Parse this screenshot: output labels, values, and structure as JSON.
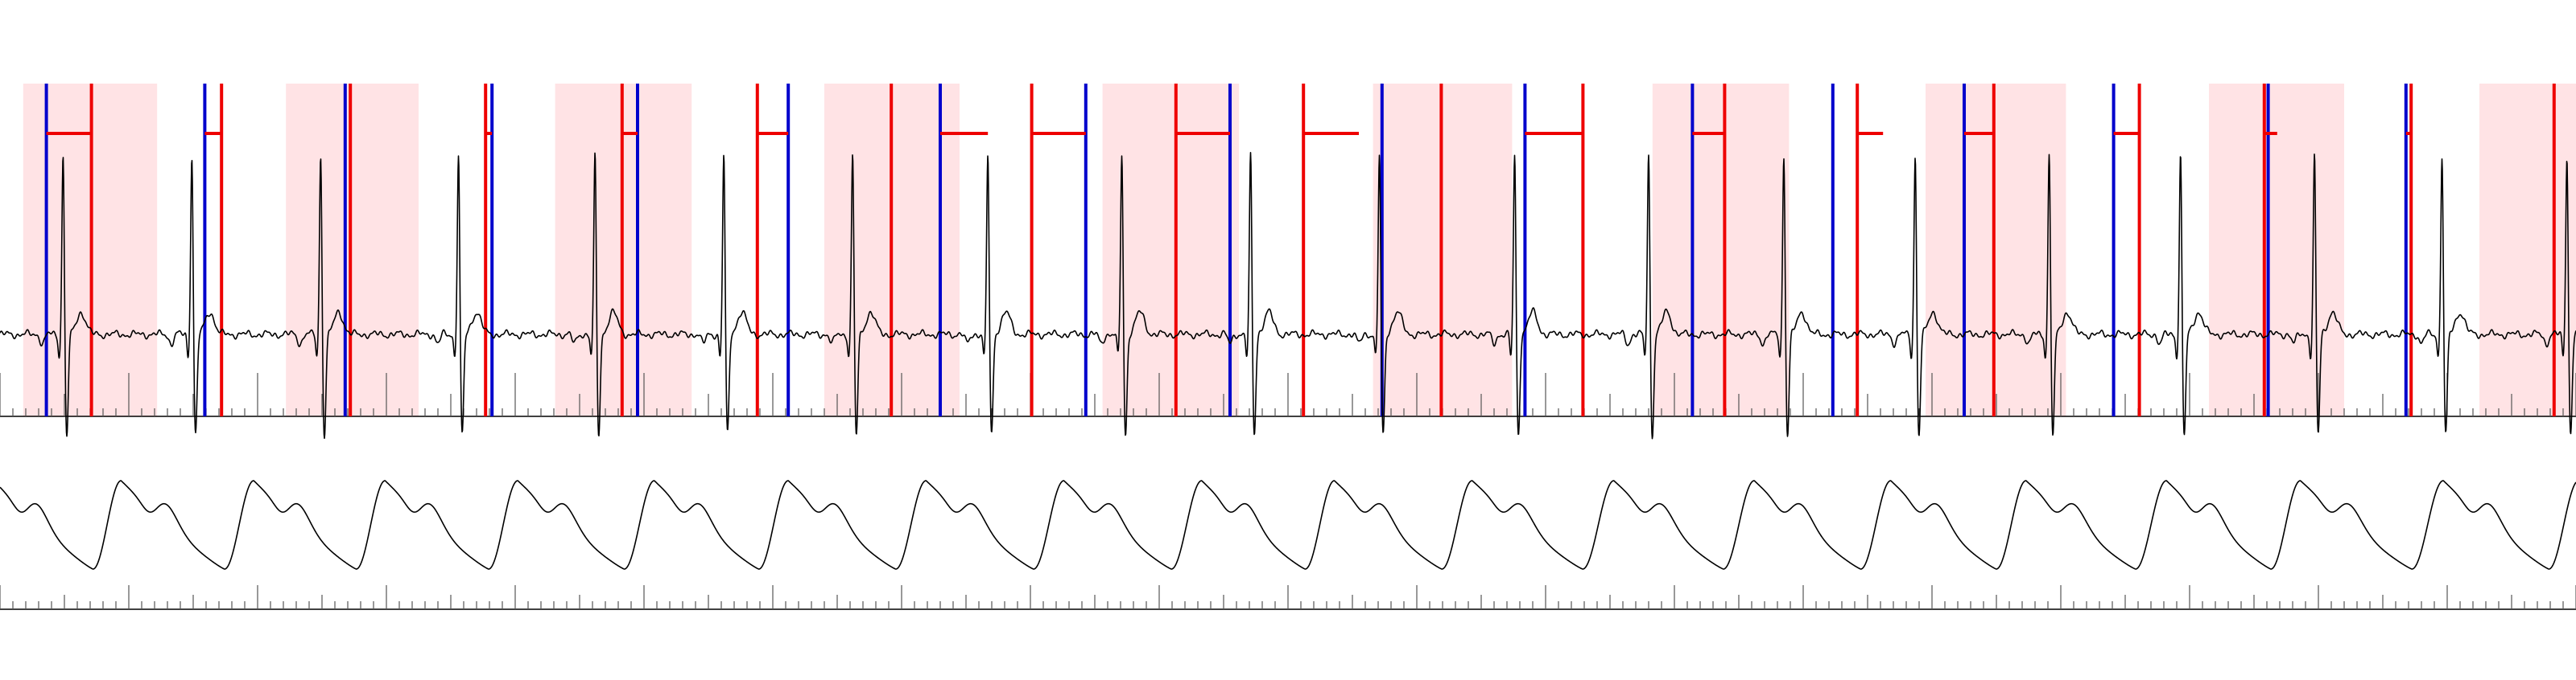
{
  "chart_data": [
    {
      "type": "line",
      "panel": "ecg",
      "title": "",
      "xlabel": "",
      "ylabel": "",
      "xlim": [
        0,
        20
      ],
      "ylim": [
        -0.6,
        1.3
      ],
      "grid": false,
      "colors": {
        "trace": "#000000",
        "band": "#ffe3e5",
        "blue_marker": "#0000cc",
        "red_marker": "#ee0000",
        "axis": "#000000"
      },
      "series": [
        {
          "r_peaks": [
            0.49,
            1.49,
            2.49,
            3.56,
            4.62,
            5.62,
            6.62,
            7.67,
            8.71,
            9.71,
            10.71,
            11.76,
            12.8,
            13.85,
            14.87,
            15.91,
            16.93,
            17.97,
            18.96,
            19.93
          ],
          "r_amplitude": 1.0,
          "t_amplitude": 0.12,
          "baseline": 0.0
        }
      ],
      "shaded_bands": [
        [
          0.18,
          1.22
        ],
        [
          2.22,
          3.25
        ],
        [
          4.31,
          5.37
        ],
        [
          6.4,
          7.45
        ],
        [
          8.56,
          9.62
        ],
        [
          10.66,
          11.74
        ],
        [
          12.83,
          13.89
        ],
        [
          14.95,
          16.04
        ],
        [
          17.15,
          18.2
        ],
        [
          19.25,
          20.0
        ]
      ],
      "blue_markers": [
        0.36,
        1.59,
        2.68,
        3.82,
        4.95,
        6.12,
        7.3,
        8.43,
        9.55,
        10.73,
        11.84,
        13.14,
        14.23,
        15.25,
        16.41,
        17.61,
        18.68
      ],
      "red_markers": [
        0.71,
        1.72,
        2.72,
        3.77,
        4.83,
        5.88,
        6.92,
        8.01,
        9.13,
        10.12,
        11.19,
        12.29,
        13.39,
        14.42,
        15.48,
        16.61,
        17.58,
        18.72,
        19.83
      ],
      "red_brackets": [
        [
          0.36,
          0.71
        ],
        [
          1.59,
          1.72
        ],
        [
          3.77,
          3.82
        ],
        [
          4.83,
          4.95
        ],
        [
          5.88,
          6.12
        ],
        [
          7.3,
          7.67
        ],
        [
          8.01,
          8.43
        ],
        [
          9.13,
          9.55
        ],
        [
          10.12,
          10.55
        ],
        [
          11.84,
          12.29
        ],
        [
          13.14,
          13.39
        ],
        [
          14.42,
          14.62
        ],
        [
          15.25,
          15.48
        ],
        [
          16.41,
          16.61
        ],
        [
          17.58,
          17.68
        ],
        [
          18.68,
          18.72
        ]
      ],
      "ticks": {
        "minor_step": 0.1,
        "mid_step": 0.5,
        "major_step": 1.0
      }
    },
    {
      "type": "line",
      "panel": "pulse",
      "title": "",
      "xlabel": "",
      "ylabel": "",
      "xlim": [
        0,
        20
      ],
      "ylim": [
        -0.1,
        1.1
      ],
      "grid": false,
      "colors": {
        "trace": "#000000",
        "axis": "#000000"
      },
      "series": [
        {
          "pulse_peaks": [
            -0.05,
            0.94,
            1.97,
            2.99,
            4.02,
            5.08,
            6.12,
            7.19,
            8.26,
            9.33,
            10.36,
            11.43,
            12.53,
            13.62,
            14.68,
            15.73,
            16.82,
            17.86,
            18.97,
            20.02
          ],
          "peak_amplitude": 1.0,
          "notch_amplitude": 0.45,
          "trough": 0.0
        }
      ],
      "ticks": {
        "minor_step": 0.1,
        "mid_step": 0.5,
        "major_step": 1.0
      }
    }
  ]
}
